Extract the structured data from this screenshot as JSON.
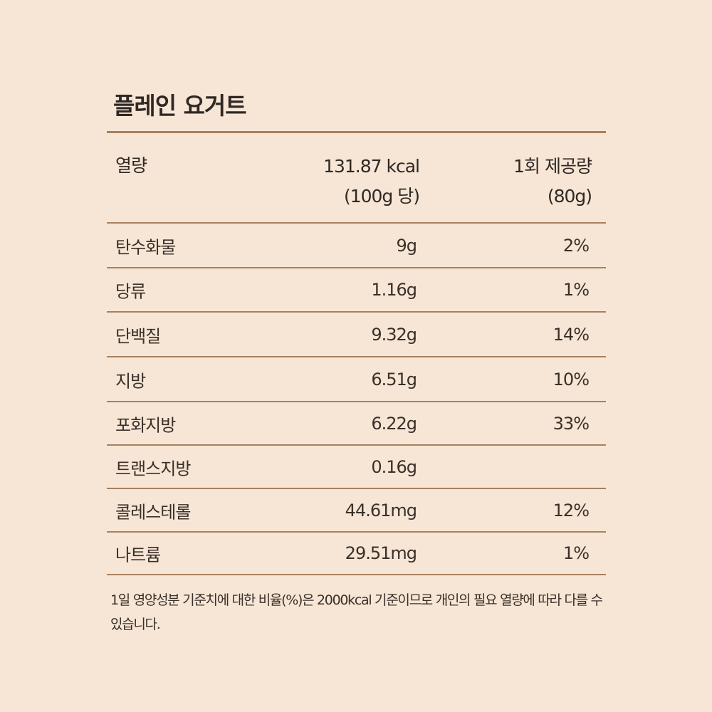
{
  "title": "플레인 요거트",
  "header": {
    "label": "열량",
    "per100_line1": "131.87 kcal",
    "per100_line2": "(100g 당)",
    "serving_line1": "1회 제공량",
    "serving_line2": "(80g)"
  },
  "rows": [
    {
      "name": "탄수화물",
      "amount": "9g",
      "percent": "2%"
    },
    {
      "name": "당류",
      "amount": "1.16g",
      "percent": "1%"
    },
    {
      "name": "단백질",
      "amount": "9.32g",
      "percent": "14%"
    },
    {
      "name": "지방",
      "amount": "6.51g",
      "percent": "10%"
    },
    {
      "name": "포화지방",
      "amount": "6.22g",
      "percent": "33%"
    },
    {
      "name": "트랜스지방",
      "amount": "0.16g",
      "percent": ""
    },
    {
      "name": "콜레스테롤",
      "amount": "44.61mg",
      "percent": "12%"
    },
    {
      "name": "나트륨",
      "amount": "29.51mg",
      "percent": "1%"
    }
  ],
  "footnote": "1일 영양성분 기준치에 대한 비율(%)은 2000kcal 기준이므로 개인의 필요 열량에 따라 다를 수 있습니다."
}
